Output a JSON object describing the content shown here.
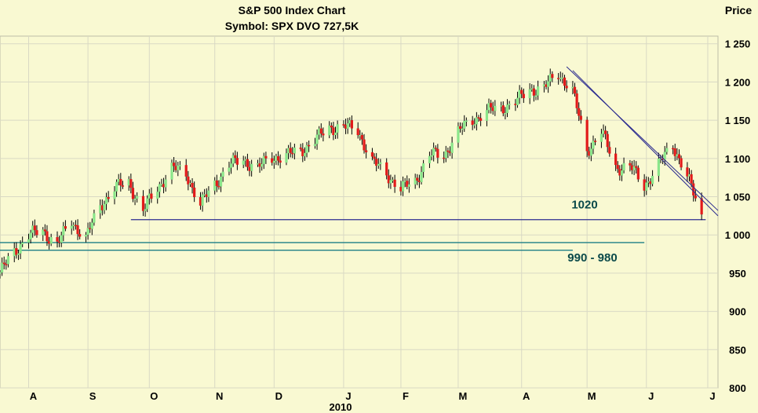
{
  "chart_data": {
    "type": "candlestick",
    "title": "S&P 500 Index Chart",
    "subtitle": "Symbol:  SPX  DVO 727,5K",
    "ylabel": "Price",
    "ylim": [
      800,
      1260
    ],
    "y_ticks": [
      "800",
      "850",
      "900",
      "950",
      "1 000",
      "1 050",
      "1 100",
      "1 150",
      "1 200",
      "1 250"
    ],
    "x_ticks": [
      "A",
      "S",
      "O",
      "N",
      "D",
      "J",
      "F",
      "M",
      "A",
      "M",
      "J",
      "J"
    ],
    "year_label": "2010",
    "x_range": [
      "2009-07-20",
      "2010-07-06"
    ],
    "x_tick_dates": [
      "2009-08-03",
      "2009-09-01",
      "2009-10-01",
      "2009-11-02",
      "2009-12-01",
      "2010-01-04",
      "2010-02-01",
      "2010-03-01",
      "2010-04-01",
      "2010-05-03",
      "2010-06-01",
      "2010-07-01"
    ],
    "colors": {
      "up": "#8ae68a",
      "down": "#e21a1a",
      "wick": "#000000",
      "trend": "#2b2b8f",
      "support": "#1f7f86",
      "grid": "#d9d9c4",
      "background": "#f9f9d2"
    },
    "series": [
      {
        "values": [
          [
            "2009-07-20",
            951
          ],
          [
            "2009-07-27",
            978
          ],
          [
            "2009-08-03",
            1000
          ],
          [
            "2009-08-10",
            1005
          ],
          [
            "2009-08-17",
            988
          ],
          [
            "2009-08-24",
            1018
          ],
          [
            "2009-08-31",
            996
          ],
          [
            "2009-09-07",
            1038
          ],
          [
            "2009-09-14",
            1062
          ],
          [
            "2009-09-21",
            1068
          ],
          [
            "2009-09-28",
            1032
          ],
          [
            "2009-10-05",
            1061
          ],
          [
            "2009-10-12",
            1088
          ],
          [
            "2009-10-19",
            1080
          ],
          [
            "2009-10-26",
            1040
          ],
          [
            "2009-11-02",
            1066
          ],
          [
            "2009-11-09",
            1092
          ],
          [
            "2009-11-16",
            1098
          ],
          [
            "2009-11-23",
            1088
          ],
          [
            "2009-11-30",
            1101
          ],
          [
            "2009-12-07",
            1104
          ],
          [
            "2009-12-14",
            1110
          ],
          [
            "2009-12-21",
            1124
          ],
          [
            "2009-12-28",
            1140
          ],
          [
            "2010-01-04",
            1142
          ],
          [
            "2010-01-11",
            1137
          ],
          [
            "2010-01-18",
            1096
          ],
          [
            "2010-01-25",
            1080
          ],
          [
            "2010-02-01",
            1060
          ],
          [
            "2010-02-08",
            1070
          ],
          [
            "2010-02-15",
            1105
          ],
          [
            "2010-02-22",
            1104
          ],
          [
            "2010-03-01",
            1135
          ],
          [
            "2010-03-08",
            1150
          ],
          [
            "2010-03-15",
            1162
          ],
          [
            "2010-03-22",
            1166
          ],
          [
            "2010-03-29",
            1174
          ],
          [
            "2010-04-05",
            1190
          ],
          [
            "2010-04-12",
            1192
          ],
          [
            "2010-04-19",
            1212
          ],
          [
            "2010-04-26",
            1188
          ],
          [
            "2010-05-03",
            1110
          ],
          [
            "2010-05-10",
            1136
          ],
          [
            "2010-05-17",
            1088
          ],
          [
            "2010-05-24",
            1090
          ],
          [
            "2010-05-31",
            1064
          ],
          [
            "2010-06-07",
            1092
          ],
          [
            "2010-06-14",
            1118
          ],
          [
            "2010-06-21",
            1077
          ],
          [
            "2010-06-28",
            1023
          ]
        ]
      }
    ],
    "annotations": [
      {
        "text": "1020",
        "level": 1020
      },
      {
        "text": "990 - 980",
        "level": 990
      }
    ],
    "trendlines": [
      [
        "2010-04-23",
        1220,
        "2010-07-06",
        1032
      ],
      [
        "2010-04-26",
        1215,
        "2010-07-06",
        1025
      ]
    ],
    "support_lines": [
      [
        "2009-09-22",
        1020,
        "2010-06-30",
        1020
      ],
      [
        "2009-07-20",
        990,
        "2010-05-31",
        990
      ],
      [
        "2009-07-20",
        980,
        "2010-04-26",
        980
      ]
    ]
  }
}
